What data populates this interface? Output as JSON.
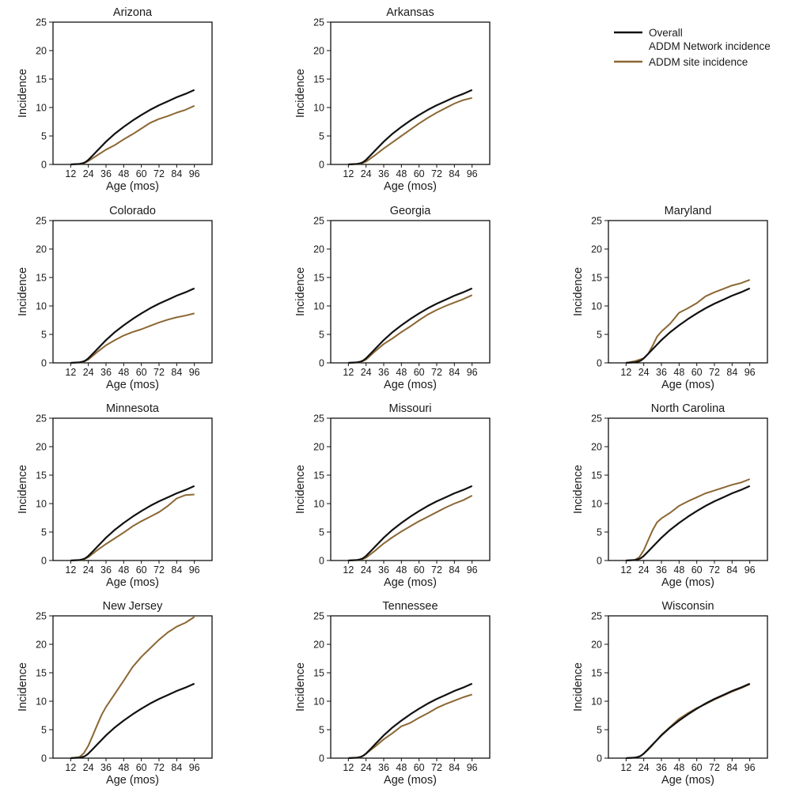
{
  "chart_data": {
    "type": "line",
    "series_names": [
      "Overall ADDM Network incidence",
      "ADDM site incidence"
    ],
    "colors": {
      "overall": "#111111",
      "site": "#8c6733"
    },
    "legend": {
      "overall_line1": "Overall",
      "overall_line2": "ADDM Network incidence",
      "site": "ADDM site incidence",
      "placement": "top-right"
    },
    "xlabel": "Age (mos)",
    "ylabel": "Incidence",
    "x_ticks": [
      12,
      24,
      36,
      48,
      60,
      72,
      84,
      96
    ],
    "y_ticks": [
      0,
      5,
      10,
      15,
      20,
      25
    ],
    "xlim": [
      0,
      108
    ],
    "ylim": [
      0,
      25
    ],
    "overall": {
      "x": [
        12,
        18,
        20,
        22,
        24,
        27,
        30,
        33,
        36,
        42,
        48,
        54,
        60,
        66,
        72,
        78,
        84,
        90,
        96
      ],
      "y": [
        0,
        0.1,
        0.2,
        0.4,
        0.8,
        1.6,
        2.4,
        3.2,
        4.0,
        5.4,
        6.6,
        7.7,
        8.7,
        9.6,
        10.4,
        11.1,
        11.8,
        12.4,
        13.1
      ]
    },
    "panels": [
      {
        "title": "Arizona",
        "site": {
          "x": [
            12,
            20,
            24,
            30,
            36,
            42,
            48,
            54,
            60,
            66,
            72,
            78,
            84,
            90,
            96
          ],
          "y": [
            0,
            0.1,
            0.6,
            1.6,
            2.6,
            3.4,
            4.4,
            5.3,
            6.3,
            7.3,
            8.0,
            8.5,
            9.1,
            9.6,
            10.3
          ]
        }
      },
      {
        "title": "Arkansas",
        "site": {
          "x": [
            12,
            20,
            24,
            30,
            36,
            42,
            48,
            54,
            60,
            66,
            72,
            78,
            84,
            90,
            96
          ],
          "y": [
            0,
            0.1,
            0.5,
            1.6,
            2.8,
            3.9,
            5.0,
            6.1,
            7.2,
            8.2,
            9.1,
            9.9,
            10.7,
            11.3,
            11.7
          ]
        }
      },
      {
        "title": "Colorado",
        "site": {
          "x": [
            12,
            20,
            24,
            30,
            36,
            42,
            48,
            54,
            60,
            66,
            72,
            78,
            84,
            90,
            96
          ],
          "y": [
            0,
            0.1,
            0.6,
            1.9,
            3.1,
            4.0,
            4.8,
            5.4,
            5.9,
            6.5,
            7.1,
            7.6,
            8.0,
            8.3,
            8.7
          ]
        }
      },
      {
        "title": "Georgia",
        "site": {
          "x": [
            12,
            20,
            24,
            30,
            36,
            42,
            48,
            54,
            60,
            66,
            72,
            78,
            84,
            90,
            96
          ],
          "y": [
            0,
            0.1,
            0.6,
            2.0,
            3.3,
            4.3,
            5.4,
            6.4,
            7.5,
            8.5,
            9.3,
            10.0,
            10.6,
            11.2,
            11.9
          ]
        }
      },
      {
        "title": "Maryland",
        "site": {
          "x": [
            12,
            18,
            24,
            27,
            30,
            33,
            36,
            42,
            48,
            54,
            60,
            66,
            72,
            78,
            84,
            90,
            96
          ],
          "y": [
            0,
            0.3,
            0.8,
            1.6,
            3.0,
            4.6,
            5.5,
            6.9,
            8.8,
            9.6,
            10.5,
            11.7,
            12.4,
            13.0,
            13.6,
            14.0,
            14.6
          ]
        }
      },
      {
        "title": "Minnesota",
        "site": {
          "x": [
            12,
            20,
            24,
            30,
            36,
            42,
            48,
            54,
            60,
            66,
            72,
            78,
            84,
            90,
            96
          ],
          "y": [
            0,
            0.1,
            0.6,
            1.8,
            2.9,
            3.9,
            4.9,
            6.0,
            6.9,
            7.7,
            8.5,
            9.6,
            10.9,
            11.5,
            11.6
          ]
        }
      },
      {
        "title": "Missouri",
        "site": {
          "x": [
            12,
            20,
            24,
            30,
            36,
            42,
            48,
            54,
            60,
            66,
            72,
            78,
            84,
            90,
            96
          ],
          "y": [
            0,
            0.1,
            0.5,
            1.7,
            3.0,
            4.1,
            5.1,
            6.0,
            6.9,
            7.7,
            8.5,
            9.3,
            10.0,
            10.6,
            11.4
          ]
        }
      },
      {
        "title": "North Carolina",
        "site": {
          "x": [
            12,
            18,
            21,
            24,
            27,
            30,
            33,
            36,
            42,
            48,
            54,
            60,
            66,
            72,
            78,
            84,
            90,
            96
          ],
          "y": [
            0,
            0.1,
            0.6,
            1.8,
            3.6,
            5.3,
            6.7,
            7.4,
            8.4,
            9.6,
            10.4,
            11.1,
            11.8,
            12.3,
            12.8,
            13.3,
            13.7,
            14.3
          ]
        }
      },
      {
        "title": "New Jersey",
        "site": {
          "x": [
            12,
            18,
            21,
            24,
            27,
            30,
            33,
            36,
            42,
            48,
            54,
            60,
            66,
            72,
            78,
            84,
            90,
            96
          ],
          "y": [
            0,
            0.2,
            0.9,
            2.2,
            4.0,
            5.8,
            7.6,
            9.0,
            11.3,
            13.6,
            16.0,
            17.8,
            19.3,
            20.8,
            22.1,
            23.1,
            23.8,
            24.8
          ]
        }
      },
      {
        "title": "Tennessee",
        "site": {
          "x": [
            12,
            20,
            24,
            30,
            36,
            42,
            48,
            54,
            60,
            66,
            72,
            78,
            84,
            90,
            96
          ],
          "y": [
            0,
            0.1,
            0.8,
            2.0,
            3.3,
            4.4,
            5.6,
            6.2,
            7.1,
            7.9,
            8.8,
            9.5,
            10.1,
            10.7,
            11.2
          ]
        }
      },
      {
        "title": "Wisconsin",
        "site": {
          "x": [
            12,
            18,
            20,
            22,
            24,
            27,
            30,
            33,
            36,
            42,
            48,
            54,
            60,
            66,
            72,
            78,
            84,
            90,
            96
          ],
          "y": [
            0,
            0.1,
            0.2,
            0.4,
            0.8,
            1.5,
            2.3,
            3.2,
            4.1,
            5.5,
            6.9,
            7.9,
            8.8,
            9.5,
            10.3,
            11.0,
            11.7,
            12.3,
            13.0
          ]
        }
      }
    ]
  }
}
